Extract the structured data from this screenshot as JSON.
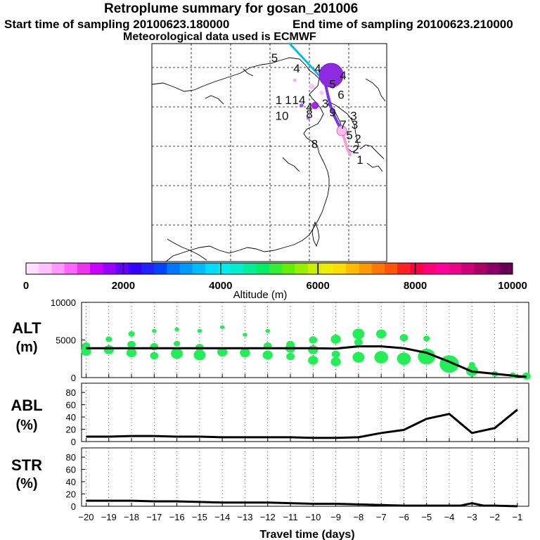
{
  "header": {
    "title": "Retroplume summary for gosan_201006",
    "start_label": "Start time of sampling 20100623.180000",
    "end_label": "End time of sampling 20100623.210000",
    "met_label": "Meteorological data used is ECMWF"
  },
  "colorbar": {
    "label": "Altitude (m)",
    "ticks": [
      "0",
      "2000",
      "4000",
      "6000",
      "8000",
      "10000"
    ],
    "colors": [
      "#ffe0ff",
      "#ffc0ff",
      "#ff99ff",
      "#ff66ff",
      "#ee33ee",
      "#cc00ff",
      "#9900ff",
      "#6600ff",
      "#3300ff",
      "#2222ff",
      "#0044ff",
      "#0077ff",
      "#0099ff",
      "#00bbff",
      "#00ddff",
      "#00eeee",
      "#00eecc",
      "#00ee99",
      "#00ee66",
      "#33ee33",
      "#66ee00",
      "#99ee00",
      "#ccee00",
      "#eeee00",
      "#ffdd00",
      "#ffbb00",
      "#ff9900",
      "#ff7700",
      "#ff5500",
      "#ff2222",
      "#ff0044",
      "#ff0077",
      "#ff0099",
      "#ee0088",
      "#cc0077",
      "#aa0066",
      "#880066",
      "#660055"
    ]
  },
  "map": {
    "labels": [
      {
        "t": "5",
        "a": 0.07,
        "b": 0.04
      },
      {
        "t": "4",
        "a": 0.28,
        "b": 0.1
      },
      {
        "t": "4",
        "a": 0.48,
        "b": 0.1
      },
      {
        "t": "4",
        "a": 0.72,
        "b": 0.14
      },
      {
        "t": "5",
        "a": 0.62,
        "b": 0.19
      },
      {
        "t": "6",
        "a": 0.7,
        "b": 0.25
      },
      {
        "t": "1",
        "a": 0.11,
        "b": 0.28
      },
      {
        "t": "1",
        "a": 0.2,
        "b": 0.28
      },
      {
        "t": "14",
        "a": 0.3,
        "b": 0.28
      },
      {
        "t": "4",
        "a": 0.4,
        "b": 0.32
      },
      {
        "t": "3",
        "a": 0.55,
        "b": 0.3
      },
      {
        "t": "10",
        "a": 0.14,
        "b": 0.37
      },
      {
        "t": "8",
        "a": 0.4,
        "b": 0.36
      },
      {
        "t": "9",
        "a": 0.62,
        "b": 0.35
      },
      {
        "t": "3",
        "a": 0.82,
        "b": 0.37
      },
      {
        "t": "7",
        "a": 0.72,
        "b": 0.42
      },
      {
        "t": "3",
        "a": 0.83,
        "b": 0.42
      },
      {
        "t": "5",
        "a": 0.78,
        "b": 0.48
      },
      {
        "t": "2",
        "a": 0.86,
        "b": 0.5
      },
      {
        "t": "8",
        "a": 0.45,
        "b": 0.53
      },
      {
        "t": "2",
        "a": 0.84,
        "b": 0.56
      },
      {
        "t": "1",
        "a": 0.88,
        "b": 0.62
      }
    ],
    "blobs": [
      {
        "a": 0.5,
        "b": 0.5,
        "v": 0.8,
        "c": "#9900ee"
      },
      {
        "a": 0.45,
        "b": 0.35,
        "v": 0.5,
        "c": "#ffbbee"
      },
      {
        "a": 0.6,
        "b": 0.4,
        "v": 0.3,
        "c": "#ffbbee"
      },
      {
        "a": 0.3,
        "b": 0.5,
        "v": 0.2,
        "c": "#7744ff"
      },
      {
        "a": 0.4,
        "b": 0.6,
        "v": 0.15,
        "c": "#aa66ff"
      },
      {
        "a": 0.2,
        "b": 0.3,
        "v": 0.1,
        "c": "#ff99ee"
      }
    ]
  },
  "chart_data": [
    {
      "type": "scatter",
      "panel": "ALT",
      "ylabel_top": "ALT",
      "ylabel_bottom": "(m)",
      "yticks": [
        "0",
        "5000",
        "10000"
      ],
      "ylim": [
        0,
        10000
      ],
      "xlim": [
        -20,
        -0.5
      ],
      "mean_line": {
        "x": [
          -20,
          -19,
          -18,
          -17,
          -16,
          -15,
          -14,
          -13,
          -12,
          -11,
          -10,
          -9,
          -8,
          -7,
          -6,
          -5,
          -4,
          -3,
          -2,
          -1,
          -0.6
        ],
        "y": [
          3900,
          3900,
          3900,
          3900,
          3900,
          3900,
          3900,
          3900,
          3900,
          3900,
          3900,
          3850,
          4150,
          4150,
          3900,
          3300,
          2100,
          800,
          500,
          200,
          100
        ]
      },
      "points": [
        {
          "x": -20,
          "y": 3500,
          "v": 4
        },
        {
          "x": -20,
          "y": 4200,
          "v": 3
        },
        {
          "x": -19,
          "y": 3700,
          "v": 4
        },
        {
          "x": -19,
          "y": 5100,
          "v": 2
        },
        {
          "x": -18,
          "y": 3300,
          "v": 4
        },
        {
          "x": -18,
          "y": 4400,
          "v": 3
        },
        {
          "x": -18,
          "y": 5800,
          "v": 2
        },
        {
          "x": -17,
          "y": 2900,
          "v": 3
        },
        {
          "x": -17,
          "y": 4100,
          "v": 3
        },
        {
          "x": -17,
          "y": 6200,
          "v": 1
        },
        {
          "x": -16,
          "y": 3200,
          "v": 5
        },
        {
          "x": -16,
          "y": 4500,
          "v": 2
        },
        {
          "x": -16,
          "y": 6400,
          "v": 1
        },
        {
          "x": -15,
          "y": 3000,
          "v": 5
        },
        {
          "x": -15,
          "y": 4000,
          "v": 3
        },
        {
          "x": -15,
          "y": 6200,
          "v": 1
        },
        {
          "x": -14,
          "y": 3400,
          "v": 4
        },
        {
          "x": -14,
          "y": 6700,
          "v": 1
        },
        {
          "x": -13,
          "y": 3300,
          "v": 4
        },
        {
          "x": -13,
          "y": 5700,
          "v": 1
        },
        {
          "x": -12,
          "y": 3000,
          "v": 4
        },
        {
          "x": -12,
          "y": 4200,
          "v": 3
        },
        {
          "x": -12,
          "y": 6200,
          "v": 1
        },
        {
          "x": -11,
          "y": 2800,
          "v": 3
        },
        {
          "x": -11,
          "y": 3900,
          "v": 4
        },
        {
          "x": -11,
          "y": 4400,
          "v": 3
        },
        {
          "x": -10,
          "y": 2300,
          "v": 4
        },
        {
          "x": -10,
          "y": 3700,
          "v": 4
        },
        {
          "x": -10,
          "y": 5000,
          "v": 3
        },
        {
          "x": -9,
          "y": 2100,
          "v": 4
        },
        {
          "x": -9,
          "y": 3100,
          "v": 3
        },
        {
          "x": -9,
          "y": 5100,
          "v": 4
        },
        {
          "x": -8,
          "y": 2700,
          "v": 5
        },
        {
          "x": -8,
          "y": 4700,
          "v": 3
        },
        {
          "x": -8,
          "y": 5800,
          "v": 5
        },
        {
          "x": -7,
          "y": 2700,
          "v": 6
        },
        {
          "x": -7,
          "y": 5800,
          "v": 4
        },
        {
          "x": -6,
          "y": 2500,
          "v": 6
        },
        {
          "x": -6,
          "y": 5300,
          "v": 3
        },
        {
          "x": -5,
          "y": 2800,
          "v": 8
        },
        {
          "x": -5,
          "y": 5200,
          "v": 2
        },
        {
          "x": -4,
          "y": 1800,
          "v": 9
        },
        {
          "x": -3,
          "y": 900,
          "v": 5
        },
        {
          "x": -3,
          "y": 1700,
          "v": 2
        },
        {
          "x": -2,
          "y": 500,
          "v": 2
        },
        {
          "x": -1.2,
          "y": 300,
          "v": 2
        },
        {
          "x": -0.6,
          "y": 200,
          "v": 3
        }
      ]
    },
    {
      "type": "line",
      "panel": "ABL",
      "ylabel_top": "ABL",
      "ylabel_bottom": "(%)",
      "yticks": [
        "0",
        "20",
        "40",
        "60",
        "80"
      ],
      "ylim": [
        0,
        95
      ],
      "xlim": [
        -20,
        -0.5
      ],
      "x": [
        -20,
        -19,
        -18,
        -17,
        -16,
        -15,
        -14,
        -13,
        -12,
        -11,
        -10,
        -9,
        -8,
        -7,
        -6,
        -5,
        -4,
        -3,
        -2,
        -1
      ],
      "y": [
        8,
        8,
        9,
        9,
        8,
        8,
        7,
        7,
        7,
        7,
        6,
        6,
        7,
        14,
        19,
        37,
        45,
        14,
        22,
        52
      ]
    },
    {
      "type": "line",
      "panel": "STR",
      "ylabel_top": "STR",
      "ylabel_bottom": "(%)",
      "yticks": [
        "0",
        "20",
        "40",
        "60",
        "80"
      ],
      "ylim": [
        0,
        95
      ],
      "xlim": [
        -20,
        -0.5
      ],
      "x": [
        -20,
        -19,
        -18,
        -17,
        -16,
        -15,
        -14,
        -13,
        -12,
        -11,
        -10,
        -9,
        -8,
        -7,
        -6,
        -5,
        -4,
        -3.5,
        -3,
        -2.5,
        -2,
        -1
      ],
      "y": [
        9,
        9,
        9,
        8,
        8,
        7,
        6,
        6,
        6,
        5,
        4,
        4,
        3,
        2,
        1,
        1,
        1,
        1,
        5,
        1,
        1,
        0
      ],
      "xticks": [
        "-20",
        "-19",
        "-18",
        "-17",
        "-16",
        "-15",
        "-14",
        "-13",
        "-12",
        "-11",
        "-10",
        "-9",
        "-8",
        "-7",
        "-6",
        "-5",
        "-4",
        "-3",
        "-2",
        "-1"
      ],
      "xlabel": "Travel time (days)"
    }
  ]
}
